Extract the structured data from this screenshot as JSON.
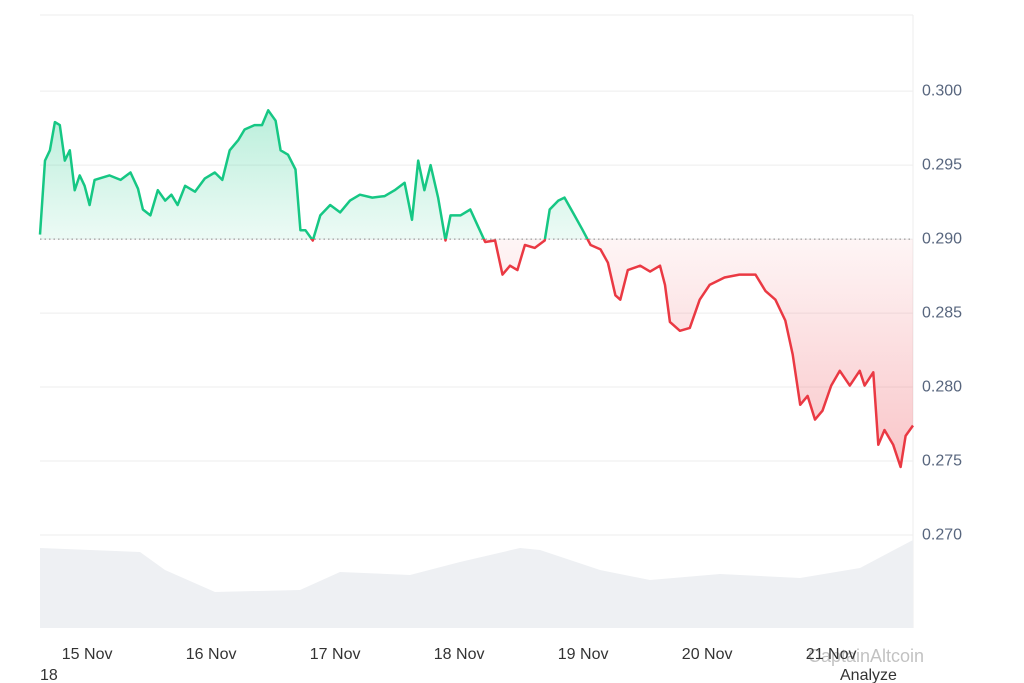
{
  "chart_data": {
    "type": "line",
    "baseline": 0.29,
    "up_color": "#16c784",
    "down_color": "#ea3943",
    "grid": true,
    "x": [
      14.62,
      14.66,
      14.7,
      14.74,
      14.78,
      14.82,
      14.86,
      14.9,
      14.94,
      14.98,
      15.02,
      15.06,
      15.1,
      15.18,
      15.27,
      15.35,
      15.41,
      15.45,
      15.51,
      15.57,
      15.63,
      15.68,
      15.73,
      15.79,
      15.87,
      15.95,
      16.03,
      16.09,
      16.15,
      16.22,
      16.27,
      16.35,
      16.41,
      16.46,
      16.52,
      16.56,
      16.62,
      16.68,
      16.72,
      16.76,
      16.82,
      16.88,
      16.96,
      17.04,
      17.12,
      17.2,
      17.3,
      17.4,
      17.48,
      17.56,
      17.62,
      17.67,
      17.72,
      17.77,
      17.83,
      17.89,
      17.93,
      18.01,
      18.09,
      18.15,
      18.21,
      18.29,
      18.35,
      18.41,
      18.47,
      18.53,
      18.61,
      18.69,
      18.73,
      18.8,
      18.85,
      18.93,
      18.99,
      19.06,
      19.14,
      19.2,
      19.26,
      19.3,
      19.36,
      19.46,
      19.54,
      19.62,
      19.66,
      19.7,
      19.78,
      19.86,
      19.94,
      20.02,
      20.14,
      20.26,
      20.39,
      20.47,
      20.55,
      20.63,
      20.69,
      20.75,
      20.81,
      20.87,
      20.93,
      21.0,
      21.07,
      21.15,
      21.23,
      21.27,
      21.34,
      21.38,
      21.43,
      21.5,
      21.56,
      21.6,
      21.66
    ],
    "series": [
      {
        "values": [
          0.2903,
          0.2953,
          0.296,
          0.2979,
          0.2977,
          0.2953,
          0.296,
          0.2933,
          0.2943,
          0.2936,
          0.2923,
          0.294,
          0.2941,
          0.2943,
          0.294,
          0.2945,
          0.2934,
          0.292,
          0.2916,
          0.2933,
          0.2926,
          0.293,
          0.2923,
          0.2936,
          0.2932,
          0.2941,
          0.2945,
          0.294,
          0.296,
          0.2967,
          0.2974,
          0.2977,
          0.2977,
          0.2987,
          0.298,
          0.296,
          0.2957,
          0.2947,
          0.2906,
          0.2906,
          0.2899,
          0.2916,
          0.2923,
          0.2918,
          0.2926,
          0.293,
          0.2928,
          0.2929,
          0.2933,
          0.2938,
          0.2913,
          0.2953,
          0.2933,
          0.295,
          0.2928,
          0.2899,
          0.2916,
          0.2916,
          0.292,
          0.2909,
          0.2898,
          0.2899,
          0.2876,
          0.2882,
          0.2879,
          0.2896,
          0.2894,
          0.2899,
          0.292,
          0.2926,
          0.2928,
          0.2916,
          0.2907,
          0.2896,
          0.2893,
          0.2884,
          0.2862,
          0.2859,
          0.2879,
          0.2882,
          0.2878,
          0.2882,
          0.2869,
          0.2844,
          0.2838,
          0.284,
          0.2859,
          0.2869,
          0.2874,
          0.2876,
          0.2876,
          0.2865,
          0.2859,
          0.2845,
          0.2822,
          0.2788,
          0.2794,
          0.2778,
          0.2784,
          0.2801,
          0.2811,
          0.2801,
          0.2811,
          0.2801,
          0.281,
          0.2761,
          0.2771,
          0.2761,
          0.2746,
          0.2767,
          0.2774
        ]
      }
    ],
    "xlim": [
      14.62,
      21.66
    ],
    "xticks": [
      {
        "value": 15,
        "label": "15 Nov"
      },
      {
        "value": 16,
        "label": "16 Nov"
      },
      {
        "value": 17,
        "label": "17 Nov"
      },
      {
        "value": 18,
        "label": "18 Nov"
      },
      {
        "value": 19,
        "label": "19 Nov"
      },
      {
        "value": 20,
        "label": "20 Nov"
      },
      {
        "value": 21,
        "label": "21 Nov"
      }
    ],
    "ylim": [
      0.26372,
      0.30514
    ],
    "yticks": [
      {
        "value": 0.3,
        "label": "0.300"
      },
      {
        "value": 0.295,
        "label": "0.295"
      },
      {
        "value": 0.29,
        "label": "0.290"
      },
      {
        "value": 0.285,
        "label": "0.285"
      },
      {
        "value": 0.28,
        "label": "0.280"
      },
      {
        "value": 0.275,
        "label": "0.275"
      },
      {
        "value": 0.27,
        "label": "0.270"
      }
    ],
    "annotations": [
      "18",
      "Analyze"
    ],
    "watermark": "CaptainAltcoin"
  }
}
